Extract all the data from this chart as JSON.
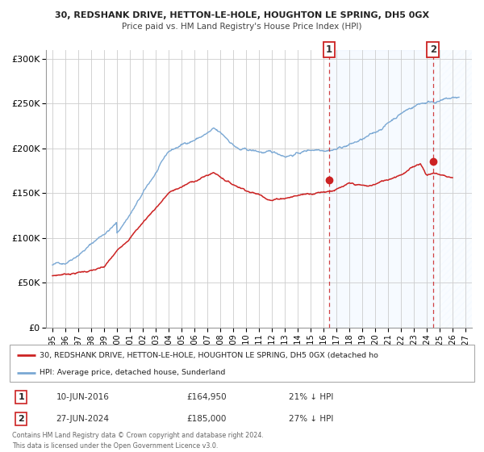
{
  "title1": "30, REDSHANK DRIVE, HETTON-LE-HOLE, HOUGHTON LE SPRING, DH5 0GX",
  "title2": "Price paid vs. HM Land Registry's House Price Index (HPI)",
  "ylim": [
    0,
    310000
  ],
  "yticks": [
    0,
    50000,
    100000,
    150000,
    200000,
    250000,
    300000
  ],
  "ytick_labels": [
    "£0",
    "£50K",
    "£100K",
    "£150K",
    "£200K",
    "£250K",
    "£300K"
  ],
  "xlim_start": 1994.5,
  "xlim_end": 2027.5,
  "xticks": [
    1995,
    1996,
    1997,
    1998,
    1999,
    2000,
    2001,
    2002,
    2003,
    2004,
    2005,
    2006,
    2007,
    2008,
    2009,
    2010,
    2011,
    2012,
    2013,
    2014,
    2015,
    2016,
    2017,
    2018,
    2019,
    2020,
    2021,
    2022,
    2023,
    2024,
    2025,
    2026,
    2027
  ],
  "hpi_color": "#7aa8d4",
  "price_color": "#cc2222",
  "marker1_date": 2016.44,
  "marker1_price": 164950,
  "marker1_label": "1",
  "marker1_text": "10-JUN-2016",
  "marker1_amount": "£164,950",
  "marker1_pct": "21% ↓ HPI",
  "marker2_date": 2024.49,
  "marker2_price": 185000,
  "marker2_label": "2",
  "marker2_text": "27-JUN-2024",
  "marker2_amount": "£185,000",
  "marker2_pct": "27% ↓ HPI",
  "shade_color": "#ddeeff",
  "legend_line1": "30, REDSHANK DRIVE, HETTON-LE-HOLE, HOUGHTON LE SPRING, DH5 0GX (detached ho",
  "legend_line2": "HPI: Average price, detached house, Sunderland",
  "footnote1": "Contains HM Land Registry data © Crown copyright and database right 2024.",
  "footnote2": "This data is licensed under the Open Government Licence v3.0.",
  "background_color": "#ffffff",
  "grid_color": "#cccccc"
}
